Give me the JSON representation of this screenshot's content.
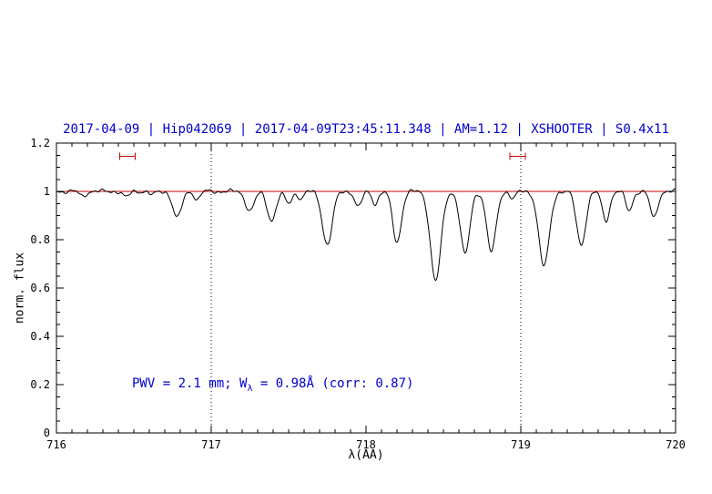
{
  "chart_data": {
    "type": "line",
    "title": "2017-04-09 | Hip042069 | 2017-04-09T23:45:11.348 | AM=1.12 | XSHOOTER | S0.4x11",
    "title_color": "#0000cc",
    "xlabel": "λ(AA)",
    "ylabel": "norm. flux",
    "xlim": [
      716,
      720
    ],
    "ylim": [
      0,
      1.2
    ],
    "grid": false,
    "legend": "none",
    "xticks": [
      {
        "value": 716,
        "label": "716"
      },
      {
        "value": 717,
        "label": "717"
      },
      {
        "value": 718,
        "label": "718"
      },
      {
        "value": 719,
        "label": "719"
      },
      {
        "value": 720,
        "label": "720"
      }
    ],
    "yticks": [
      {
        "value": 0,
        "label": "0"
      },
      {
        "value": 0.2,
        "label": "0.2"
      },
      {
        "value": 0.4,
        "label": "0.4"
      },
      {
        "value": 0.6,
        "label": "0.6"
      },
      {
        "value": 0.8,
        "label": "0.8"
      },
      {
        "value": 1,
        "label": "1"
      },
      {
        "value": 1.2,
        "label": "1.2"
      }
    ],
    "dotted_vlines": [
      717,
      719
    ],
    "continuum_level": 1.0,
    "continuum_color": "#cc0000",
    "line_color": "#000000",
    "marker_color": "#cc0000",
    "range_markers": [
      {
        "center": 716.46,
        "half_width": 0.05,
        "y": 1.145
      },
      {
        "center": 718.98,
        "half_width": 0.05,
        "y": 1.145
      }
    ],
    "annotation": {
      "prefix": "PWV = 2.1 mm; W",
      "sub": "λ",
      "suffix": " = 0.98Å (corr: 0.87)",
      "color": "#0000cc"
    },
    "absorption_lines": [
      {
        "center": 716.17,
        "depth": 0.02,
        "sigma": 0.02
      },
      {
        "center": 716.45,
        "depth": 0.025,
        "sigma": 0.02
      },
      {
        "center": 716.62,
        "depth": 0.015,
        "sigma": 0.018
      },
      {
        "center": 716.78,
        "depth": 0.11,
        "sigma": 0.028
      },
      {
        "center": 716.91,
        "depth": 0.035,
        "sigma": 0.018
      },
      {
        "center": 717.25,
        "depth": 0.08,
        "sigma": 0.028
      },
      {
        "center": 717.39,
        "depth": 0.12,
        "sigma": 0.028
      },
      {
        "center": 717.5,
        "depth": 0.05,
        "sigma": 0.022
      },
      {
        "center": 717.58,
        "depth": 0.03,
        "sigma": 0.018
      },
      {
        "center": 717.75,
        "depth": 0.22,
        "sigma": 0.032
      },
      {
        "center": 717.95,
        "depth": 0.065,
        "sigma": 0.022
      },
      {
        "center": 718.06,
        "depth": 0.05,
        "sigma": 0.02
      },
      {
        "center": 718.2,
        "depth": 0.21,
        "sigma": 0.028
      },
      {
        "center": 718.45,
        "depth": 0.37,
        "sigma": 0.034
      },
      {
        "center": 718.64,
        "depth": 0.26,
        "sigma": 0.03
      },
      {
        "center": 718.81,
        "depth": 0.25,
        "sigma": 0.03
      },
      {
        "center": 718.95,
        "depth": 0.03,
        "sigma": 0.018
      },
      {
        "center": 719.15,
        "depth": 0.31,
        "sigma": 0.034
      },
      {
        "center": 719.39,
        "depth": 0.22,
        "sigma": 0.03
      },
      {
        "center": 719.55,
        "depth": 0.12,
        "sigma": 0.024
      },
      {
        "center": 719.7,
        "depth": 0.08,
        "sigma": 0.022
      },
      {
        "center": 719.86,
        "depth": 0.11,
        "sigma": 0.024
      }
    ]
  }
}
